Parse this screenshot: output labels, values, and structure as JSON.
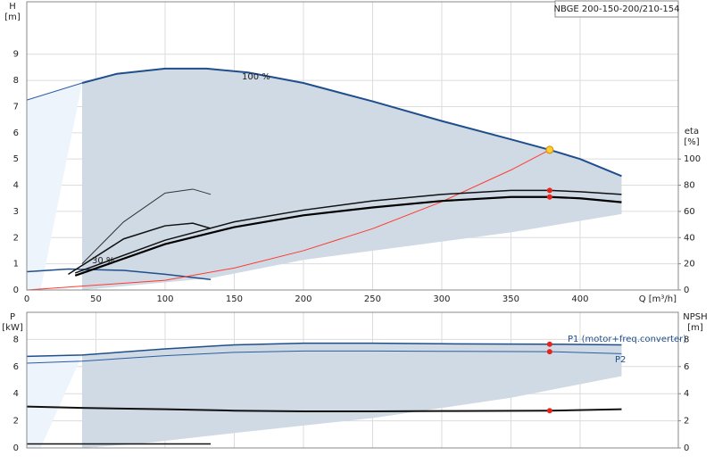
{
  "chart_data": [
    {
      "type": "line",
      "title": "NBGE 200-150-200/210-154",
      "xlabel": "Q [m³/h]",
      "ylabel": "H",
      "yunit": "[m]",
      "y2label": "eta",
      "y2unit": "[%]",
      "annotations": [
        "100 %",
        "30 %"
      ],
      "xlim": [
        0,
        471
      ],
      "xticks": [
        0,
        50,
        100,
        150,
        200,
        250,
        300,
        350,
        400
      ],
      "ylim": [
        0,
        11
      ],
      "yticks": [
        0,
        1,
        2,
        3,
        4,
        5,
        6,
        7,
        8,
        9
      ],
      "y2lim": [
        0,
        220
      ],
      "y2ticks": [
        0,
        20,
        40,
        60,
        80,
        100
      ],
      "grid": true,
      "xtick_labels": true,
      "series": [
        {
          "style": "area",
          "color": "#eef4fb",
          "x": [
            0,
            40,
            10,
            0
          ],
          "values": [
            7.25,
            7.9,
            0,
            0
          ]
        },
        {
          "style": "area",
          "color": "#cfdae5",
          "x": [
            40,
            65,
            100,
            130,
            160,
            200,
            250,
            300,
            350,
            378,
            400,
            430,
            430,
            350,
            250,
            200,
            133,
            40
          ],
          "values": [
            7.9,
            8.25,
            8.45,
            8.45,
            8.3,
            7.9,
            7.2,
            6.45,
            5.75,
            5.35,
            5.0,
            4.35,
            2.9,
            2.2,
            1.5,
            1.15,
            0.45,
            0
          ]
        },
        {
          "style": "line",
          "color": "#2a5ea0",
          "width": 1,
          "x": [
            0,
            40
          ],
          "values": [
            7.25,
            7.9
          ]
        },
        {
          "style": "line",
          "color": "#1f4e8c",
          "width": 2,
          "x": [
            40,
            65,
            100,
            130,
            160,
            200,
            250,
            300,
            350,
            378,
            400,
            430
          ],
          "values": [
            7.9,
            8.25,
            8.45,
            8.45,
            8.3,
            7.9,
            7.2,
            6.45,
            5.75,
            5.35,
            5.0,
            4.35
          ]
        },
        {
          "style": "line",
          "color": "#1f4e8c",
          "width": 1.5,
          "x": [
            0,
            30,
            70,
            100,
            133
          ],
          "values": [
            0.7,
            0.8,
            0.75,
            0.6,
            0.4
          ]
        },
        {
          "style": "line",
          "color": "#333333",
          "width": 1,
          "x": [
            40,
            70,
            100,
            120,
            133
          ],
          "values": [
            1.0,
            2.6,
            3.7,
            3.85,
            3.65
          ]
        },
        {
          "style": "line",
          "color": "#111111",
          "width": 1.5,
          "x": [
            30,
            70,
            100,
            120,
            133
          ],
          "values": [
            0.6,
            1.95,
            2.45,
            2.55,
            2.35
          ]
        },
        {
          "style": "line",
          "color": "#ff3b30",
          "width": 1,
          "x": [
            0,
            100,
            150,
            200,
            250,
            300,
            350,
            378
          ],
          "values": [
            0,
            0.37,
            0.84,
            1.5,
            2.34,
            3.37,
            4.58,
            5.35
          ]
        },
        {
          "style": "line",
          "color": "#111111",
          "width": 1.5,
          "axis": "y2",
          "x": [
            35,
            100,
            150,
            200,
            250,
            300,
            350,
            378,
            400,
            430
          ],
          "values": [
            13,
            38,
            52,
            61,
            68,
            73,
            76,
            76,
            75,
            73
          ]
        },
        {
          "style": "line",
          "color": "#000000",
          "width": 2.2,
          "axis": "y2",
          "x": [
            35,
            100,
            150,
            200,
            250,
            300,
            350,
            378,
            400,
            430
          ],
          "values": [
            11,
            35,
            48,
            57,
            63,
            68,
            71,
            71,
            70,
            67
          ]
        },
        {
          "style": "point",
          "color": "#ffcc33",
          "x": [
            378
          ],
          "values": [
            5.35
          ]
        },
        {
          "style": "point",
          "color": "#e8231b",
          "axis": "y2",
          "x": [
            378,
            378
          ],
          "values": [
            76,
            71
          ]
        }
      ]
    },
    {
      "type": "line",
      "ylabel": "P",
      "yunit": "[kW]",
      "y2label": "NPSH",
      "y2unit": "[m]",
      "annotations": [
        "P1 (motor+freq.converter)",
        "P2"
      ],
      "xlim": [
        0,
        471
      ],
      "xticks": [
        0,
        50,
        100,
        150,
        200,
        250,
        300,
        350,
        400
      ],
      "ylim": [
        0,
        10
      ],
      "yticks": [
        0,
        2,
        4,
        6,
        8
      ],
      "y2lim": [
        0,
        10
      ],
      "y2ticks": [
        0,
        2,
        4,
        6,
        8
      ],
      "grid": true,
      "xtick_labels": false,
      "series": [
        {
          "style": "area",
          "color": "#eef4fb",
          "x": [
            0,
            40,
            10,
            0
          ],
          "values": [
            6.75,
            6.85,
            0,
            0
          ]
        },
        {
          "style": "area",
          "color": "#cfdae5",
          "x": [
            40,
            100,
            150,
            200,
            250,
            300,
            378,
            430,
            430,
            350,
            250,
            150,
            80,
            40
          ],
          "values": [
            6.85,
            7.3,
            7.6,
            7.72,
            7.72,
            7.68,
            7.65,
            7.6,
            5.3,
            3.7,
            2.2,
            1.1,
            0.3,
            0
          ]
        },
        {
          "style": "line",
          "color": "#1f4e8c",
          "width": 1.5,
          "x": [
            0,
            40,
            100,
            150,
            200,
            250,
            300,
            378,
            430
          ],
          "values": [
            6.75,
            6.85,
            7.3,
            7.6,
            7.72,
            7.72,
            7.68,
            7.65,
            7.6
          ]
        },
        {
          "style": "line",
          "color": "#2a5ea0",
          "width": 1,
          "x": [
            0,
            40,
            100,
            150,
            200,
            250,
            300,
            378,
            430
          ],
          "values": [
            6.25,
            6.4,
            6.8,
            7.05,
            7.15,
            7.15,
            7.12,
            7.1,
            6.95
          ]
        },
        {
          "style": "line",
          "color": "#111111",
          "width": 2,
          "axis": "y2",
          "x": [
            0,
            40,
            100,
            150,
            200,
            250,
            300,
            378,
            430
          ],
          "values": [
            3.05,
            2.95,
            2.85,
            2.75,
            2.7,
            2.7,
            2.72,
            2.75,
            2.85
          ]
        },
        {
          "style": "line",
          "color": "#111111",
          "width": 1.5,
          "x": [
            0,
            133
          ],
          "values": [
            0.3,
            0.3
          ]
        },
        {
          "style": "point",
          "color": "#e8231b",
          "x": [
            378,
            378
          ],
          "values": [
            7.65,
            7.1
          ]
        },
        {
          "style": "point",
          "color": "#e8231b",
          "axis": "y2",
          "x": [
            378
          ],
          "values": [
            2.75
          ]
        }
      ]
    }
  ]
}
